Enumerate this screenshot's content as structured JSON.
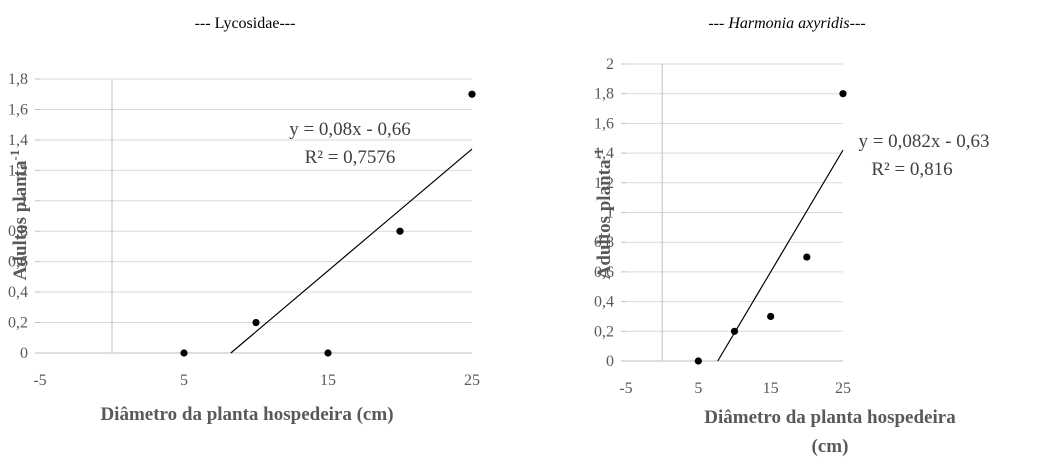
{
  "chart_data": [
    {
      "type": "scatter",
      "title_prefix": "--- ",
      "title_main": "Lycosidae",
      "title_suffix": "---",
      "title_italic": false,
      "xlabel_lines": [
        "Diâmetro da planta hospedeira (cm)"
      ],
      "ylabel": "Adultos planta",
      "ylabel_sup": "-1",
      "xlim": [
        -5,
        25
      ],
      "ylim": [
        0,
        1.8
      ],
      "xticks": [
        -5,
        5,
        15,
        25
      ],
      "yticks": [
        0,
        0.2,
        0.4,
        0.6,
        0.8,
        1,
        1.2,
        1.4,
        1.6,
        1.8
      ],
      "xtick_labels": [
        "-5",
        "5",
        "15",
        "25"
      ],
      "ytick_labels": [
        "0",
        "0,2",
        "0,4",
        "0,6",
        "0,8",
        "1",
        "1,2",
        "1,4",
        "1,6",
        "1,8"
      ],
      "points": [
        {
          "x": 5,
          "y": 0
        },
        {
          "x": 10,
          "y": 0.2
        },
        {
          "x": 15,
          "y": 0
        },
        {
          "x": 20,
          "y": 0.8
        },
        {
          "x": 25,
          "y": 1.7
        }
      ],
      "trendline": {
        "slope": 0.08,
        "intercept": -0.66
      },
      "equation": "y = 0,08x - 0,66",
      "r2": "R² = 0,7576",
      "grid": true
    },
    {
      "type": "scatter",
      "title_prefix": "--- ",
      "title_main": "Harmonia axyridis",
      "title_suffix": "---",
      "title_italic": true,
      "xlabel_lines": [
        "Diâmetro da planta hospedeira",
        "(cm)"
      ],
      "ylabel": "Adultos planta",
      "ylabel_sup": "-1",
      "xlim": [
        -5,
        25
      ],
      "ylim": [
        0,
        2
      ],
      "xticks": [
        -5,
        5,
        15,
        25
      ],
      "yticks": [
        0,
        0.2,
        0.4,
        0.6,
        0.8,
        1,
        1.2,
        1.4,
        1.6,
        1.8,
        2
      ],
      "xtick_labels": [
        "-5",
        "5",
        "15",
        "25"
      ],
      "ytick_labels": [
        "0",
        "0,2",
        "0,4",
        "0,6",
        "0,8",
        "1",
        "1,2",
        "1,4",
        "1,6",
        "1,8",
        "2"
      ],
      "points": [
        {
          "x": 5,
          "y": 0
        },
        {
          "x": 10,
          "y": 0.2
        },
        {
          "x": 15,
          "y": 0.3
        },
        {
          "x": 20,
          "y": 0.7
        },
        {
          "x": 25,
          "y": 1.8
        }
      ],
      "trendline": {
        "slope": 0.082,
        "intercept": -0.63
      },
      "equation": "y = 0,082x - 0,63",
      "r2": "R² = 0,816",
      "grid": true
    }
  ]
}
